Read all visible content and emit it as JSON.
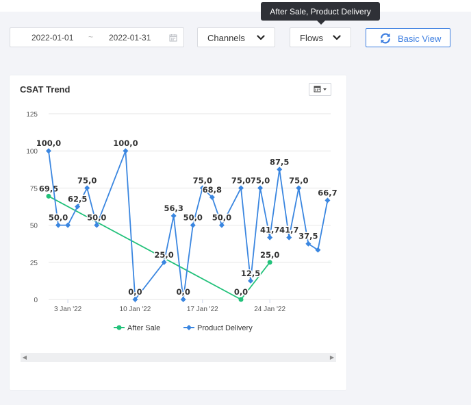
{
  "filters": {
    "date_start": "2022-01-01",
    "date_separator": "~",
    "date_end": "2022-01-31",
    "channels_label": "Channels",
    "flows_label": "Flows",
    "basic_view_label": "Basic View"
  },
  "tooltip": {
    "text": "After Sale, Product Delivery"
  },
  "card": {
    "title": "CSAT Trend"
  },
  "colors": {
    "after_sale": "#22c17a",
    "product_delivery": "#3a86e0",
    "accent": "#3b7de0"
  },
  "icons": {
    "calendar": "calendar-icon",
    "chevron": "chevron-down-icon",
    "sync": "sync-icon",
    "menu": "calendar-dropdown-icon"
  },
  "chart_data": {
    "type": "line",
    "title": "CSAT Trend",
    "xlabel": "",
    "ylabel": "",
    "ylim": [
      0,
      125
    ],
    "yticks": [
      0,
      25,
      50,
      75,
      100,
      125
    ],
    "xlim": [
      "2022-01-01",
      "2022-01-31"
    ],
    "xticks": [
      {
        "date": "2022-01-03",
        "label": "3 Jan '22"
      },
      {
        "date": "2022-01-10",
        "label": "10 Jan '22"
      },
      {
        "date": "2022-01-17",
        "label": "17 Jan '22"
      },
      {
        "date": "2022-01-24",
        "label": "24 Jan '22"
      }
    ],
    "grid": true,
    "legend": "bottom-center",
    "series": [
      {
        "name": "After Sale",
        "color": "#22c17a",
        "marker": "circle",
        "points": [
          {
            "x": "2022-01-01",
            "y": 69.5,
            "label": "69,5"
          },
          {
            "x": "2022-01-21",
            "y": 0,
            "label": "0,0"
          },
          {
            "x": "2022-01-24",
            "y": 25,
            "label": "25,0"
          }
        ]
      },
      {
        "name": "Product Delivery",
        "color": "#3a86e0",
        "marker": "diamond",
        "points": [
          {
            "x": "2022-01-01",
            "y": 100,
            "label": "100,0"
          },
          {
            "x": "2022-01-02",
            "y": 50,
            "label": "50,0"
          },
          {
            "x": "2022-01-03",
            "y": 50,
            "label": ""
          },
          {
            "x": "2022-01-04",
            "y": 62.5,
            "label": "62,5"
          },
          {
            "x": "2022-01-05",
            "y": 75,
            "label": "75,0"
          },
          {
            "x": "2022-01-06",
            "y": 50,
            "label": "50,0"
          },
          {
            "x": "2022-01-09",
            "y": 100,
            "label": "100,0"
          },
          {
            "x": "2022-01-10",
            "y": 0,
            "label": "0,0"
          },
          {
            "x": "2022-01-13",
            "y": 25,
            "label": "25,0"
          },
          {
            "x": "2022-01-14",
            "y": 56.3,
            "label": "56,3"
          },
          {
            "x": "2022-01-15",
            "y": 0,
            "label": "0,0"
          },
          {
            "x": "2022-01-16",
            "y": 50,
            "label": "50,0"
          },
          {
            "x": "2022-01-17",
            "y": 75,
            "label": "75,0"
          },
          {
            "x": "2022-01-18",
            "y": 68.8,
            "label": "68,8"
          },
          {
            "x": "2022-01-19",
            "y": 50,
            "label": "50,0"
          },
          {
            "x": "2022-01-21",
            "y": 75,
            "label": "75,0"
          },
          {
            "x": "2022-01-22",
            "y": 12.5,
            "label": "12,5"
          },
          {
            "x": "2022-01-23",
            "y": 75,
            "label": "75,0"
          },
          {
            "x": "2022-01-24",
            "y": 41.7,
            "label": "41,7"
          },
          {
            "x": "2022-01-25",
            "y": 87.5,
            "label": "87,5"
          },
          {
            "x": "2022-01-26",
            "y": 41.7,
            "label": "41,7"
          },
          {
            "x": "2022-01-27",
            "y": 75,
            "label": "75,0"
          },
          {
            "x": "2022-01-28",
            "y": 37.5,
            "label": "37,5"
          },
          {
            "x": "2022-01-29",
            "y": 33.3,
            "label": ""
          },
          {
            "x": "2022-01-30",
            "y": 66.7,
            "label": "66,7"
          }
        ]
      }
    ]
  }
}
